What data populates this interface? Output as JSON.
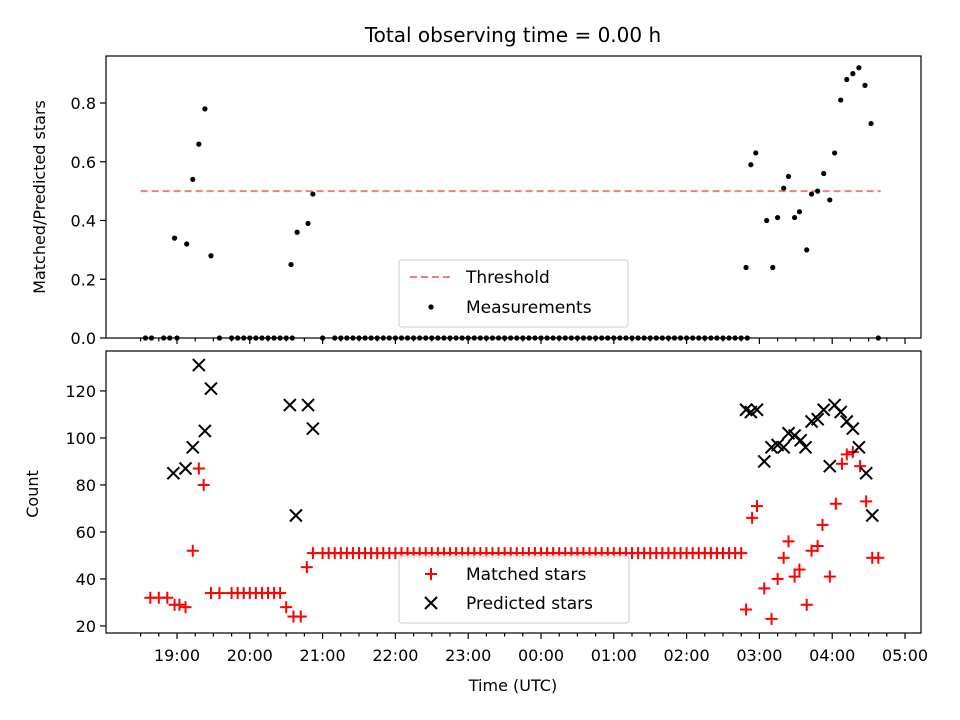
{
  "title": "Total observing time = 0.00 h",
  "chart_data": [
    {
      "type": "scatter",
      "ylabel": "Matched/Predicted stars",
      "ylim": [
        0,
        0.96
      ],
      "yticks": [
        0.0,
        0.2,
        0.4,
        0.6,
        0.8
      ],
      "ytick_labels": [
        "0.0",
        "0.2",
        "0.4",
        "0.6",
        "0.8"
      ],
      "legend_position": "bottom-center",
      "threshold": {
        "name": "Threshold",
        "value": 0.5,
        "x_start": "18:30",
        "x_end": "04:40",
        "color": "#f08080"
      },
      "measurements": {
        "name": "Measurements",
        "color": "#000000",
        "points": [
          [
            "18:34",
            0
          ],
          [
            "18:39",
            0
          ],
          [
            "18:49",
            0
          ],
          [
            "18:54",
            0
          ],
          [
            "19:00",
            0
          ],
          [
            "18:58",
            0.34
          ],
          [
            "19:08",
            0.32
          ],
          [
            "19:13",
            0.54
          ],
          [
            "19:18",
            0.66
          ],
          [
            "19:23",
            0.78
          ],
          [
            "19:28",
            0.28
          ],
          [
            "19:35",
            0
          ],
          [
            "19:45",
            0
          ],
          [
            "19:50",
            0
          ],
          [
            "19:55",
            0
          ],
          [
            "20:00",
            0
          ],
          [
            "20:05",
            0
          ],
          [
            "20:10",
            0
          ],
          [
            "20:15",
            0
          ],
          [
            "20:20",
            0
          ],
          [
            "20:25",
            0
          ],
          [
            "20:30",
            0
          ],
          [
            "20:35",
            0
          ],
          [
            "20:34",
            0.25
          ],
          [
            "20:39",
            0.36
          ],
          [
            "20:48",
            0.39
          ],
          [
            "20:52",
            0.49
          ],
          [
            "21:00",
            0
          ],
          [
            "21:10",
            0
          ],
          [
            "21:15",
            0
          ],
          [
            "21:20",
            0
          ],
          [
            "21:25",
            0
          ],
          [
            "21:30",
            0
          ],
          [
            "21:35",
            0
          ],
          [
            "21:40",
            0
          ],
          [
            "21:45",
            0
          ],
          [
            "21:50",
            0
          ],
          [
            "21:55",
            0
          ],
          [
            "22:00",
            0
          ],
          [
            "22:05",
            0
          ],
          [
            "22:10",
            0
          ],
          [
            "22:15",
            0
          ],
          [
            "22:20",
            0
          ],
          [
            "22:25",
            0
          ],
          [
            "22:30",
            0
          ],
          [
            "22:35",
            0
          ],
          [
            "22:40",
            0
          ],
          [
            "22:45",
            0
          ],
          [
            "22:50",
            0
          ],
          [
            "22:55",
            0
          ],
          [
            "23:00",
            0
          ],
          [
            "23:05",
            0
          ],
          [
            "23:10",
            0
          ],
          [
            "23:15",
            0
          ],
          [
            "23:20",
            0
          ],
          [
            "23:25",
            0
          ],
          [
            "23:30",
            0
          ],
          [
            "23:35",
            0
          ],
          [
            "23:40",
            0
          ],
          [
            "23:45",
            0
          ],
          [
            "23:50",
            0
          ],
          [
            "23:55",
            0
          ],
          [
            "00:00",
            0
          ],
          [
            "00:05",
            0
          ],
          [
            "00:10",
            0
          ],
          [
            "00:15",
            0
          ],
          [
            "00:20",
            0
          ],
          [
            "00:25",
            0
          ],
          [
            "00:30",
            0
          ],
          [
            "00:35",
            0
          ],
          [
            "00:40",
            0
          ],
          [
            "00:45",
            0
          ],
          [
            "00:50",
            0
          ],
          [
            "00:55",
            0
          ],
          [
            "01:00",
            0
          ],
          [
            "01:05",
            0
          ],
          [
            "01:10",
            0
          ],
          [
            "01:15",
            0
          ],
          [
            "01:20",
            0
          ],
          [
            "01:25",
            0
          ],
          [
            "01:30",
            0
          ],
          [
            "01:35",
            0
          ],
          [
            "01:40",
            0
          ],
          [
            "01:45",
            0
          ],
          [
            "01:50",
            0
          ],
          [
            "01:55",
            0
          ],
          [
            "02:00",
            0
          ],
          [
            "02:05",
            0
          ],
          [
            "02:10",
            0
          ],
          [
            "02:15",
            0
          ],
          [
            "02:20",
            0
          ],
          [
            "02:25",
            0
          ],
          [
            "02:30",
            0
          ],
          [
            "02:35",
            0
          ],
          [
            "02:40",
            0
          ],
          [
            "02:45",
            0
          ],
          [
            "02:50",
            0
          ],
          [
            "02:49",
            0.24
          ],
          [
            "02:53",
            0.59
          ],
          [
            "02:57",
            0.63
          ],
          [
            "03:06",
            0.4
          ],
          [
            "03:11",
            0.24
          ],
          [
            "03:15",
            0.41
          ],
          [
            "03:20",
            0.51
          ],
          [
            "03:24",
            0.55
          ],
          [
            "03:29",
            0.41
          ],
          [
            "03:33",
            0.43
          ],
          [
            "03:39",
            0.3
          ],
          [
            "03:43",
            0.49
          ],
          [
            "03:48",
            0.5
          ],
          [
            "03:53",
            0.56
          ],
          [
            "03:58",
            0.47
          ],
          [
            "04:02",
            0.63
          ],
          [
            "04:07",
            0.81
          ],
          [
            "04:12",
            0.88
          ],
          [
            "04:17",
            0.9
          ],
          [
            "04:22",
            0.92
          ],
          [
            "04:27",
            0.86
          ],
          [
            "04:32",
            0.73
          ],
          [
            "04:38",
            0
          ]
        ]
      }
    },
    {
      "type": "scatter",
      "xlabel": "Time (UTC)",
      "ylabel": "Count",
      "ylim": [
        17,
        137
      ],
      "yticks": [
        20,
        40,
        60,
        80,
        100,
        120
      ],
      "ytick_labels": [
        "20",
        "40",
        "60",
        "80",
        "100",
        "120"
      ],
      "xtick_labels": [
        "19:00",
        "20:00",
        "21:00",
        "22:00",
        "23:00",
        "00:00",
        "01:00",
        "02:00",
        "03:00",
        "04:00",
        "05:00"
      ],
      "legend_position": "bottom-center",
      "series": [
        {
          "name": "Matched stars",
          "marker": "plus",
          "color": "#ff0000",
          "points": [
            [
              "18:38",
              32
            ],
            [
              "18:45",
              32
            ],
            [
              "18:52",
              32
            ],
            [
              "18:58",
              29
            ],
            [
              "19:02",
              29
            ],
            [
              "19:07",
              28
            ],
            [
              "19:13",
              52
            ],
            [
              "19:18",
              87
            ],
            [
              "19:22",
              80
            ],
            [
              "19:28",
              34
            ],
            [
              "19:35",
              34
            ],
            [
              "19:45",
              34
            ],
            [
              "19:50",
              34
            ],
            [
              "19:55",
              34
            ],
            [
              "20:00",
              34
            ],
            [
              "20:05",
              34
            ],
            [
              "20:10",
              34
            ],
            [
              "20:15",
              34
            ],
            [
              "20:20",
              34
            ],
            [
              "20:25",
              34
            ],
            [
              "20:30",
              28
            ],
            [
              "20:36",
              24
            ],
            [
              "20:42",
              24
            ],
            [
              "20:47",
              45
            ],
            [
              "20:52",
              51
            ],
            [
              "21:00",
              51
            ],
            [
              "21:05",
              51
            ],
            [
              "21:10",
              51
            ],
            [
              "21:15",
              51
            ],
            [
              "21:20",
              51
            ],
            [
              "21:25",
              51
            ],
            [
              "21:30",
              51
            ],
            [
              "21:35",
              51
            ],
            [
              "21:40",
              51
            ],
            [
              "21:45",
              51
            ],
            [
              "21:50",
              51
            ],
            [
              "21:55",
              51
            ],
            [
              "22:00",
              51
            ],
            [
              "22:05",
              51
            ],
            [
              "22:10",
              51
            ],
            [
              "22:15",
              51
            ],
            [
              "22:20",
              51
            ],
            [
              "22:25",
              51
            ],
            [
              "22:30",
              51
            ],
            [
              "22:35",
              51
            ],
            [
              "22:40",
              51
            ],
            [
              "22:45",
              51
            ],
            [
              "22:50",
              51
            ],
            [
              "22:55",
              51
            ],
            [
              "23:00",
              51
            ],
            [
              "23:05",
              51
            ],
            [
              "23:10",
              51
            ],
            [
              "23:15",
              51
            ],
            [
              "23:20",
              51
            ],
            [
              "23:25",
              51
            ],
            [
              "23:30",
              51
            ],
            [
              "23:35",
              51
            ],
            [
              "23:40",
              51
            ],
            [
              "23:45",
              51
            ],
            [
              "23:50",
              51
            ],
            [
              "23:55",
              51
            ],
            [
              "00:00",
              51
            ],
            [
              "00:05",
              51
            ],
            [
              "00:10",
              51
            ],
            [
              "00:15",
              51
            ],
            [
              "00:20",
              51
            ],
            [
              "00:25",
              51
            ],
            [
              "00:30",
              51
            ],
            [
              "00:35",
              51
            ],
            [
              "00:40",
              51
            ],
            [
              "00:45",
              51
            ],
            [
              "00:50",
              51
            ],
            [
              "00:55",
              51
            ],
            [
              "01:00",
              51
            ],
            [
              "01:05",
              51
            ],
            [
              "01:10",
              51
            ],
            [
              "01:15",
              51
            ],
            [
              "01:20",
              51
            ],
            [
              "01:25",
              51
            ],
            [
              "01:30",
              51
            ],
            [
              "01:35",
              51
            ],
            [
              "01:40",
              51
            ],
            [
              "01:45",
              51
            ],
            [
              "01:50",
              51
            ],
            [
              "01:55",
              51
            ],
            [
              "02:00",
              51
            ],
            [
              "02:05",
              51
            ],
            [
              "02:10",
              51
            ],
            [
              "02:15",
              51
            ],
            [
              "02:20",
              51
            ],
            [
              "02:25",
              51
            ],
            [
              "02:30",
              51
            ],
            [
              "02:35",
              51
            ],
            [
              "02:40",
              51
            ],
            [
              "02:45",
              51
            ],
            [
              "02:49",
              27
            ],
            [
              "02:54",
              66
            ],
            [
              "02:58",
              71
            ],
            [
              "03:04",
              36
            ],
            [
              "03:10",
              23
            ],
            [
              "03:15",
              40
            ],
            [
              "03:20",
              49
            ],
            [
              "03:24",
              56
            ],
            [
              "03:29",
              41
            ],
            [
              "03:33",
              44
            ],
            [
              "03:39",
              29
            ],
            [
              "03:43",
              52
            ],
            [
              "03:48",
              54
            ],
            [
              "03:52",
              63
            ],
            [
              "03:58",
              41
            ],
            [
              "04:03",
              72
            ],
            [
              "04:08",
              89
            ],
            [
              "04:12",
              93
            ],
            [
              "04:17",
              94
            ],
            [
              "04:23",
              88
            ],
            [
              "04:28",
              73
            ],
            [
              "04:33",
              49
            ],
            [
              "04:38",
              49
            ]
          ]
        },
        {
          "name": "Predicted stars",
          "marker": "x",
          "color": "#000000",
          "points": [
            [
              "18:57",
              85
            ],
            [
              "19:07",
              87
            ],
            [
              "19:13",
              96
            ],
            [
              "19:18",
              131
            ],
            [
              "19:23",
              103
            ],
            [
              "19:28",
              121
            ],
            [
              "20:33",
              114
            ],
            [
              "20:38",
              67
            ],
            [
              "20:48",
              114
            ],
            [
              "20:52",
              104
            ],
            [
              "02:49",
              112
            ],
            [
              "02:53",
              111
            ],
            [
              "02:58",
              112
            ],
            [
              "03:04",
              90
            ],
            [
              "03:10",
              96
            ],
            [
              "03:15",
              97
            ],
            [
              "03:20",
              96
            ],
            [
              "03:24",
              102
            ],
            [
              "03:29",
              101
            ],
            [
              "03:34",
              99
            ],
            [
              "03:38",
              96
            ],
            [
              "03:43",
              107
            ],
            [
              "03:48",
              108
            ],
            [
              "03:53",
              112
            ],
            [
              "03:58",
              88
            ],
            [
              "04:02",
              114
            ],
            [
              "04:07",
              111
            ],
            [
              "04:12",
              107
            ],
            [
              "04:17",
              104
            ],
            [
              "04:22",
              96
            ],
            [
              "04:28",
              85
            ],
            [
              "04:33",
              67
            ]
          ]
        }
      ]
    }
  ]
}
